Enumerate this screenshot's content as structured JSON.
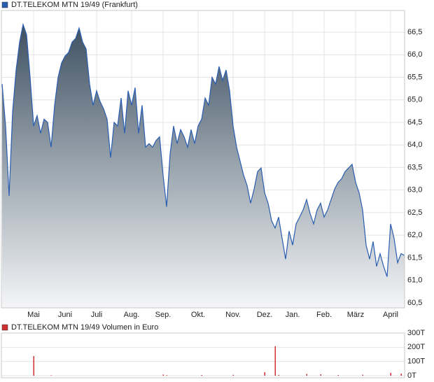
{
  "chart_data": [
    {
      "type": "area",
      "title": "DT.TELEKOM MTN 19/49 (Frankfurt)",
      "color": "#2a5db0",
      "grid": true,
      "categories": [
        null,
        null,
        null,
        null,
        null,
        null,
        null,
        null,
        null,
        "Mai",
        null,
        null,
        null,
        null,
        null,
        null,
        null,
        null,
        "Juni",
        null,
        null,
        null,
        null,
        null,
        null,
        null,
        null,
        "Juli",
        null,
        null,
        null,
        null,
        null,
        null,
        null,
        null,
        null,
        "Aug.",
        null,
        null,
        null,
        null,
        null,
        null,
        null,
        null,
        "Sep.",
        null,
        null,
        null,
        null,
        null,
        null,
        null,
        null,
        null,
        "Okt.",
        null,
        null,
        null,
        null,
        null,
        null,
        null,
        null,
        null,
        "Nov.",
        null,
        null,
        null,
        null,
        null,
        null,
        null,
        null,
        "Dez.",
        null,
        null,
        null,
        null,
        null,
        null,
        null,
        "Jan.",
        null,
        null,
        null,
        null,
        null,
        null,
        null,
        null,
        "Feb.",
        null,
        null,
        null,
        null,
        null,
        null,
        null,
        null,
        "März",
        null,
        null,
        null,
        null,
        null,
        null,
        null,
        null,
        null,
        "April",
        null,
        null,
        null,
        null
      ],
      "values": [
        65.35,
        64.42,
        62.87,
        64.73,
        65.66,
        66.28,
        66.67,
        66.44,
        65.5,
        64.42,
        64.65,
        64.26,
        64.57,
        64.5,
        63.95,
        64.88,
        65.5,
        65.82,
        65.97,
        66.05,
        66.28,
        66.36,
        66.59,
        66.28,
        66.13,
        65.35,
        64.88,
        65.2,
        64.96,
        64.8,
        64.57,
        63.72,
        64.5,
        64.42,
        65.04,
        64.26,
        65.2,
        64.88,
        65.27,
        64.26,
        64.88,
        63.95,
        64.03,
        63.95,
        64.1,
        64.18,
        63.33,
        62.63,
        63.8,
        64.42,
        64.03,
        64.34,
        64.18,
        63.95,
        64.34,
        64.03,
        64.42,
        64.57,
        65.04,
        64.88,
        65.5,
        65.35,
        65.74,
        65.43,
        65.66,
        65.2,
        64.42,
        63.95,
        63.64,
        63.33,
        63.1,
        62.71,
        63.02,
        63.41,
        63.49,
        62.94,
        62.71,
        62.32,
        62.16,
        62.4,
        61.93,
        61.47,
        62.09,
        61.78,
        62.25,
        62.4,
        62.56,
        62.79,
        62.48,
        62.25,
        62.56,
        62.71,
        62.4,
        62.56,
        62.79,
        63.02,
        63.17,
        63.25,
        63.41,
        63.49,
        63.57,
        63.17,
        62.94,
        62.56,
        61.78,
        61.47,
        61.86,
        61.31,
        61.59,
        61.31,
        61.08,
        62.25,
        61.93,
        61.39,
        61.59,
        61.55
      ],
      "ylim": [
        60.39,
        66.98
      ],
      "yticks": [
        {
          "value": 60.5,
          "label": "60,5"
        },
        {
          "value": 61,
          "label": "61,0"
        },
        {
          "value": 61.5,
          "label": "61,5"
        },
        {
          "value": 62,
          "label": "62,0"
        },
        {
          "value": 62.5,
          "label": "62,5"
        },
        {
          "value": 63,
          "label": "63,0"
        },
        {
          "value": 63.5,
          "label": "63,5"
        },
        {
          "value": 64,
          "label": "64,0"
        },
        {
          "value": 64.5,
          "label": "64,5"
        },
        {
          "value": 65,
          "label": "65,0"
        },
        {
          "value": 65.5,
          "label": "65,5"
        },
        {
          "value": 66,
          "label": "66,0"
        },
        {
          "value": 66.5,
          "label": "66,5"
        }
      ]
    },
    {
      "type": "bar",
      "title": "DT.TELEKOM MTN 19/49 Volumen in Euro",
      "color": "#d03030",
      "grid": true,
      "values": [
        0,
        0,
        0,
        0,
        0,
        0,
        0,
        0,
        0,
        138,
        0,
        0,
        0,
        0,
        3,
        0,
        0,
        0,
        0,
        0,
        0,
        0,
        0,
        0,
        0,
        0,
        0,
        0,
        0,
        0,
        0,
        0,
        0,
        0,
        0,
        0,
        0,
        0,
        0,
        0,
        0,
        0,
        0,
        0,
        0,
        0,
        8,
        4,
        0,
        0,
        0,
        0,
        0,
        0,
        0,
        0,
        0,
        5,
        0,
        0,
        0,
        0,
        0,
        0,
        0,
        0,
        6,
        0,
        0,
        0,
        0,
        0,
        0,
        0,
        0,
        25,
        0,
        0,
        207,
        6,
        0,
        0,
        0,
        0,
        0,
        0,
        0,
        12,
        0,
        0,
        0,
        10,
        0,
        0,
        0,
        0,
        5,
        0,
        0,
        0,
        0,
        0,
        0,
        7,
        0,
        0,
        0,
        0,
        0,
        0,
        0,
        20,
        0,
        0,
        15,
        0
      ],
      "ylim": [
        0,
        300
      ],
      "yticks": [
        {
          "value": 0,
          "label": "0T"
        },
        {
          "value": 100,
          "label": "100T"
        },
        {
          "value": 200,
          "label": "200T"
        },
        {
          "value": 300,
          "label": "300T"
        }
      ]
    }
  ]
}
